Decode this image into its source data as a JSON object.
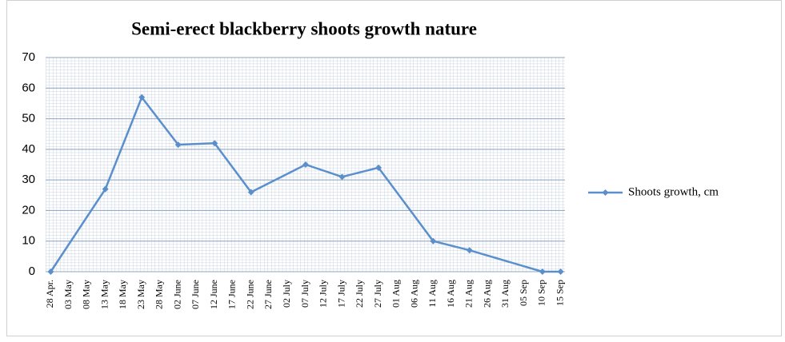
{
  "chart_data": {
    "type": "line",
    "title": "Semi-erect blackberry shoots growth nature",
    "categories": [
      "28 Apr.",
      "03 May",
      "08 May",
      "13 May",
      "18 May",
      "23 May",
      "28 May",
      "02 June",
      "07 June",
      "12 June",
      "17 June",
      "22 June",
      "27 June",
      "02 July",
      "07 July",
      "12 July",
      "17 July",
      "22 July",
      "27 July",
      "01 Aug",
      "06 Aug",
      "11 Aug",
      "16 Aug",
      "21 Aug",
      "26 Aug",
      "31 Aug",
      "05 Sep",
      "10 Sep",
      "15 Sep"
    ],
    "series": [
      {
        "name": "Shoots growth, cm",
        "color": "#5b8fcc",
        "values": [
          0,
          null,
          null,
          27,
          null,
          57,
          null,
          41.5,
          null,
          42,
          null,
          26,
          null,
          null,
          35,
          null,
          31,
          null,
          34,
          null,
          null,
          10,
          null,
          7,
          null,
          null,
          null,
          0,
          0
        ]
      }
    ],
    "ylim": [
      0,
      70
    ],
    "yticks": [
      0,
      10,
      20,
      30,
      40,
      50,
      60,
      70
    ],
    "grid": true,
    "legend": "right"
  }
}
